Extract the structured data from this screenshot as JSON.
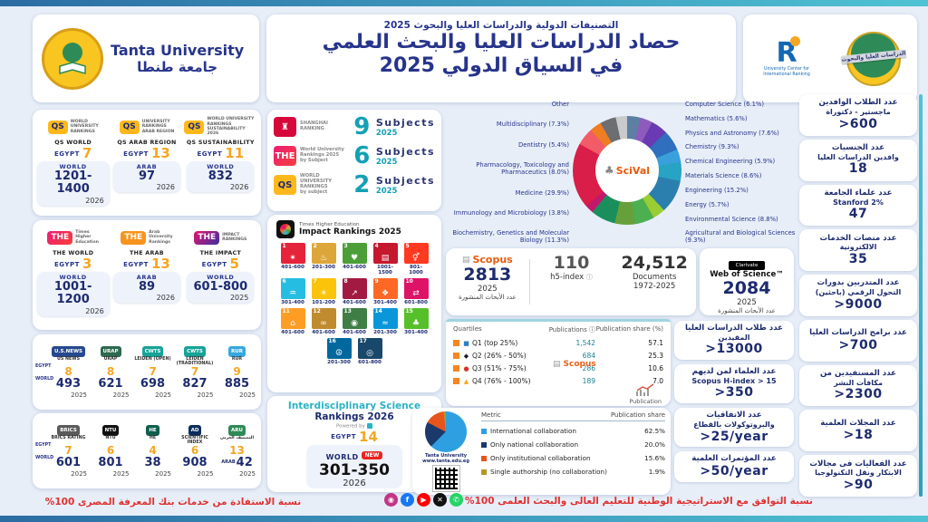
{
  "labels": {
    "egypt": "EGYPT",
    "world": "WORLD",
    "arab": "ARAB"
  },
  "icons": {
    "info": "ⓘ"
  },
  "header": {
    "university_en": "Tanta University",
    "university_ar": "جامعة طنطا",
    "small_title": "التصنيفات الدولية والدراسات العليا والبحوث 2025",
    "title_line1": "حصاد الدراسات العليا والبحث العلمي",
    "title_line2": "في السياق الدولي 2025",
    "center_name": "University Center for International Ranking",
    "pg_banner": "الدراسات العليا والبحوث"
  },
  "left": {
    "qs": {
      "items": [
        {
          "badge": "QS",
          "badge_bg": "#ffb81c",
          "badge_fg": "#1d2b6e",
          "caption": "WORLD|UNIVERSITY|RANKINGS",
          "label": "QS WORLD",
          "egypt": "7",
          "scope": "WORLD",
          "value": "1201-1400",
          "year": "2026"
        },
        {
          "badge": "QS",
          "badge_bg": "#ffb81c",
          "badge_fg": "#1d2b6e",
          "caption": "UNIVERSITY|RANKINGS|ARAB REGION",
          "label": "QS ARAB REGION",
          "egypt": "13",
          "scope": "ARAB",
          "value": "97",
          "year": "2026"
        },
        {
          "badge": "QS",
          "badge_bg": "#ffb81c",
          "badge_fg": "#1d2b6e",
          "caption": "WORLD UNIVERSITY|RANKINGS|SUSTAINABILITY 2026",
          "label": "QS SUSTAINABILITY",
          "egypt": "11",
          "scope": "WORLD",
          "value": "832",
          "year": "2026"
        }
      ]
    },
    "the": {
      "items": [
        {
          "badge": "THE",
          "badge_bg": "linear-gradient(135deg,#ec1c74,#f7403a)",
          "badge_fg": "#fff",
          "caption": "Times|Higher|Education",
          "label": "THE WORLD",
          "egypt": "3",
          "scope": "WORLD",
          "value": "1001-1200",
          "year": "2026"
        },
        {
          "badge": "THE",
          "badge_bg": "#f7941d",
          "badge_fg": "#fff",
          "caption": "Arab|University|Rankings",
          "label": "THE ARAB",
          "egypt": "13",
          "scope": "ARAB",
          "value": "89",
          "year": "2026"
        },
        {
          "badge": "THE",
          "badge_bg": "linear-gradient(135deg,#e4156d,#3b2fa3)",
          "badge_fg": "#fff",
          "caption": "IMPACT|RANKINGS",
          "label": "THE IMPACT",
          "egypt": "5",
          "scope": "WORLD",
          "value": "601-800",
          "year": "2025"
        }
      ]
    },
    "row_a": {
      "items": [
        {
          "logo": "U.S.NEWS",
          "bg": "#26488e",
          "label": "US NEWS",
          "egypt": "8",
          "value": "493",
          "year": "2025"
        },
        {
          "logo": "URAP",
          "bg": "#2d6a4f",
          "label": "URAP",
          "egypt": "8",
          "value": "621",
          "year": "2025"
        },
        {
          "logo": "CWTS",
          "bg": "#17a398",
          "label": "LEIDEN (OPEN)",
          "egypt": "7",
          "value": "698",
          "year": "2025"
        },
        {
          "logo": "CWTS",
          "bg": "#17a398",
          "label": "LEIDEN (TRADITIONAL)",
          "egypt": "7",
          "value": "827",
          "year": "2025"
        },
        {
          "logo": "RUR",
          "bg": "#35a8e0",
          "label": "RUR",
          "egypt": "9",
          "value": "885",
          "year": "2025"
        }
      ]
    },
    "row_b": {
      "items": [
        {
          "logo": "BRICS",
          "bg": "#5b5b5b",
          "label": "BRICS RATING",
          "egypt": "7",
          "value": "601",
          "year": "2025"
        },
        {
          "logo": "NTU",
          "bg": "#111111",
          "label": "NTU",
          "egypt": "6",
          "value": "801",
          "year": "2025"
        },
        {
          "logo": "HE",
          "bg": "#0e5e4e",
          "label": "HE",
          "egypt": "4",
          "value": "38",
          "year": "2025"
        },
        {
          "logo": "AD",
          "bg": "#0b2d5b",
          "label": "SCIENTIFIC INDEX",
          "egypt": "6",
          "value": "908",
          "year": "2025"
        },
        {
          "logo": "ARU",
          "bg": "#2e8b57",
          "label": "التصنيف العربي",
          "egypt": "13",
          "value": "42",
          "value_prefix": "ARAB",
          "year": "2025"
        }
      ]
    }
  },
  "subjects": {
    "items": [
      {
        "badge": "♜",
        "badge_bg": "#d6083b",
        "caption": "SHANGHAI|RANKING",
        "count": "9",
        "unit": "Subjects",
        "year": "2025"
      },
      {
        "badge": "THE",
        "badge_bg": "linear-gradient(135deg,#ec1c74,#f7403a)",
        "caption": "World University|Rankings 2025|by Subject",
        "count": "6",
        "unit": "Subjects",
        "year": "2025"
      },
      {
        "badge": "QS",
        "badge_bg": "#ffb81c",
        "badge_fg": "#1d2b6e",
        "caption": "WORLD|UNIVERSITY|RANKINGS|by subject",
        "count": "2",
        "unit": "Subjects",
        "year": "2025"
      }
    ]
  },
  "impact": {
    "brand": "Times Higher Education",
    "title": "Impact Rankings 2025",
    "tiles": [
      {
        "n": "1",
        "title": "NO POVERTY",
        "color": "#e5243b",
        "icon": "✶",
        "rank": "401-600"
      },
      {
        "n": "2",
        "title": "ZERO HUNGER",
        "color": "#dda63a",
        "icon": "♨",
        "rank": "201-300"
      },
      {
        "n": "3",
        "title": "GOOD HEALTH AND WELL-BEING",
        "color": "#4c9f38",
        "icon": "♥",
        "rank": "401-600"
      },
      {
        "n": "4",
        "title": "QUALITY EDUCATION",
        "color": "#c5192d",
        "icon": "▤",
        "rank": "1001-1500"
      },
      {
        "n": "5",
        "title": "GENDER EQUALITY",
        "color": "#ff3a21",
        "icon": "⚥",
        "rank": "801-1000"
      },
      {
        "n": "6",
        "title": "CLEAN WATER AND SANITATION",
        "color": "#26bde2",
        "icon": "♒",
        "rank": "301-400"
      },
      {
        "n": "7",
        "title": "AFFORDABLE AND CLEAN ENERGY",
        "color": "#fcc30b",
        "icon": "☀",
        "rank": "101-200"
      },
      {
        "n": "8",
        "title": "DECENT WORK AND ECONOMIC GROWTH",
        "color": "#a21942",
        "icon": "↗",
        "rank": "401-600"
      },
      {
        "n": "9",
        "title": "INDUSTRY, INNOVATION AND INFRASTRUCTURE",
        "color": "#fd6925",
        "icon": "❖",
        "rank": "301-400"
      },
      {
        "n": "10",
        "title": "REDUCED INEQUALITIES",
        "color": "#dd1367",
        "icon": "⇄",
        "rank": "601-800"
      },
      {
        "n": "11",
        "title": "SUSTAINABLE CITIES AND COMMUNITIES",
        "color": "#fd9d24",
        "icon": "⌂",
        "rank": "401-600"
      },
      {
        "n": "12",
        "title": "RESPONSIBLE CONSUMPTION AND PRODUCTION",
        "color": "#bf8b2e",
        "icon": "∞",
        "rank": "401-600"
      },
      {
        "n": "13",
        "title": "CLIMATE ACTION",
        "color": "#3f7e44",
        "icon": "◉",
        "rank": "401-600"
      },
      {
        "n": "14",
        "title": "LIFE BELOW WATER",
        "color": "#0a97d9",
        "icon": "≈",
        "rank": "201-300"
      },
      {
        "n": "15",
        "title": "LIFE ON LAND",
        "color": "#56c02b",
        "icon": "♣",
        "rank": "301-400"
      },
      {
        "n": "16",
        "title": "PEACE, JUSTICE AND STRONG INSTITUTIONS",
        "color": "#00689d",
        "icon": "☮",
        "rank": "201-300"
      },
      {
        "n": "17",
        "title": "PARTNERSHIPS FOR THE GOALS",
        "color": "#19486a",
        "icon": "◎",
        "rank": "601-800"
      }
    ]
  },
  "interdisciplinary": {
    "title1": "Interdisciplinary Science",
    "title2": "Rankings 2026",
    "powered": "Powered by",
    "egypt": "14",
    "badge": "NEW",
    "value": "301-350",
    "year": "2026"
  },
  "scival": {
    "label": "SciVal"
  },
  "metrics": {
    "scopus": {
      "name": "Scopus",
      "value": "2813",
      "year": "2025",
      "note": "عدد الأبحاث المنشورة"
    },
    "h5": {
      "value": "110",
      "label": "h5-index"
    },
    "documents": {
      "value": "24,512",
      "label": "Documents",
      "range": "1972-2025"
    },
    "wos": {
      "brand": "Clarivate",
      "name": "Web of Science™",
      "value": "2084",
      "year": "2025",
      "note": "عدد الأبحاث المنشورة"
    }
  },
  "quartiles": {
    "watermark": "Scopus",
    "pub_label": "Publication",
    "legend_square_color": "#f5861f",
    "row_markers": [
      {
        "shape": "■",
        "color": "#2f80c2"
      },
      {
        "shape": "◆",
        "color": "#1a1a2e"
      },
      {
        "shape": "●",
        "color": "#d93025"
      },
      {
        "shape": "▲",
        "color": "#f5a623"
      }
    ]
  },
  "collaboration": {
    "site_name": "Tanta University",
    "site_url": "www.tanta.edu.eg"
  },
  "mid_stats": {
    "items": [
      {
        "title": "عدد طلاب الدراسات العليا",
        "sub": "المقيدين",
        "value": ">13000"
      },
      {
        "title": "عدد العلماء لمن لديهم",
        "sub": "Scopus H-index > 15",
        "value": ">350"
      },
      {
        "title": "عدد الاتفاقيات",
        "sub": "والبروتوكولات بالقطاع",
        "value": ">25/year"
      },
      {
        "title": "عدد المؤتمرات العلمية",
        "value": ">50/year"
      }
    ]
  },
  "sidebar": {
    "items": [
      {
        "title": "عدد الطلاب الوافدين",
        "sub": "ماجستير - دكتوراة",
        "value": ">600"
      },
      {
        "title": "عدد الجنسيات",
        "sub": "وافدين الدراسات العليا",
        "value": "18"
      },
      {
        "title": "عدد علماء الجامعة",
        "sub": "Stanford 2%",
        "value": "47"
      },
      {
        "title": "عدد منصات الخدمات",
        "sub": "الالكترونية",
        "value": "35"
      },
      {
        "title": "عدد المتدربين بدورات",
        "sub": "التحول الرقمي (باحثين)",
        "value": ">9000"
      },
      {
        "title": "عدد برامج الدراسات العليا",
        "value": ">700"
      },
      {
        "title": "عدد المستفيدين من",
        "sub": "مكافأت النشر",
        "value": ">2300"
      },
      {
        "title": "عدد المجلات العلمية",
        "value": ">18"
      },
      {
        "title": "عدد الفعاليات فى مجالات",
        "sub": "الابتكار ونقل التكنولوجيا",
        "value": ">90"
      }
    ]
  },
  "footer": {
    "left": "نسبة الاستفادة من خدمات بنك المعرفة المصرى 100%",
    "right": "نسبة التوافق مع الاستراتيجية الوطنية للتعليم العالى والبحث العلمى 100%",
    "socials": [
      {
        "name": "instagram",
        "glyph": "◉",
        "color": "#c13584"
      },
      {
        "name": "facebook",
        "glyph": "f",
        "color": "#1877f2"
      },
      {
        "name": "youtube",
        "glyph": "▶",
        "color": "#ff0000"
      },
      {
        "name": "x",
        "glyph": "✕",
        "color": "#111111"
      },
      {
        "name": "whatsapp",
        "glyph": "✆",
        "color": "#25d366"
      }
    ]
  },
  "chart_data": [
    {
      "type": "pie",
      "subtype": "donut",
      "title": "SciVal publication share by subject area",
      "categories": [
        "Computer Science",
        "Mathematics",
        "Physics and Astronomy",
        "Chemistry",
        "Chemical Engineering",
        "Materials Science",
        "Engineering",
        "Energy",
        "Environmental Science",
        "Agricultural and Biological Sciences",
        "Biochemistry, Genetics and Molecular Biology",
        "Immunology and Microbiology",
        "Medicine",
        "Pharmacology, Toxicology and Pharmaceutics",
        "Dentistry",
        "Multidisciplinary",
        "Other"
      ],
      "values": [
        6.1,
        5.6,
        7.6,
        9.3,
        5.9,
        8.6,
        15.2,
        5.7,
        8.8,
        9.3,
        11.3,
        3.8,
        29.9,
        8.0,
        5.4,
        7.3,
        5.2
      ],
      "colors": [
        "#5c7fa3",
        "#8e5bbd",
        "#6a3ab2",
        "#2f6fbd",
        "#3aa0dc",
        "#27a3c4",
        "#2b7fae",
        "#9acd32",
        "#4caf50",
        "#66a03a",
        "#1a8f5c",
        "#c2186b",
        "#d91e49",
        "#f25c69",
        "#ef7d23",
        "#6d6e71",
        "#c9cacc"
      ],
      "note": "'Other' slice size estimated; it is unlabeled in the figure",
      "legend_position": "around"
    },
    {
      "type": "pie",
      "title": "Collaboration publication share",
      "categories": [
        "International collaboration",
        "Only national collaboration",
        "Only institutional collaboration",
        "Single authorship (no collaboration)"
      ],
      "values": [
        62.5,
        20.0,
        15.6,
        1.9
      ],
      "colors": [
        "#2e9fe0",
        "#1b3a6b",
        "#e8541e",
        "#b8971f"
      ]
    },
    {
      "type": "table",
      "title": "Scopus quartiles",
      "headers": [
        "Quartiles",
        "Publications ⓘ",
        "Publication share (%)"
      ],
      "rows": [
        [
          "Q1 (top 25%)",
          "1,542",
          "57.1"
        ],
        [
          "Q2 (26% - 50%)",
          "684",
          "25.3"
        ],
        [
          "Q3 (51% - 75%)",
          "286",
          "10.6"
        ],
        [
          "Q4 (76% - 100%)",
          "189",
          "7.0"
        ]
      ]
    },
    {
      "type": "table",
      "title": "Collaboration metrics",
      "headers": [
        "Metric",
        "Publication share"
      ],
      "rows": [
        [
          "International collaboration",
          "62.5%"
        ],
        [
          "Only national collaboration",
          "20.0%"
        ],
        [
          "Only institutional collaboration",
          "15.6%"
        ],
        [
          "Single authorship (no collaboration)",
          "1.9%"
        ]
      ]
    }
  ]
}
